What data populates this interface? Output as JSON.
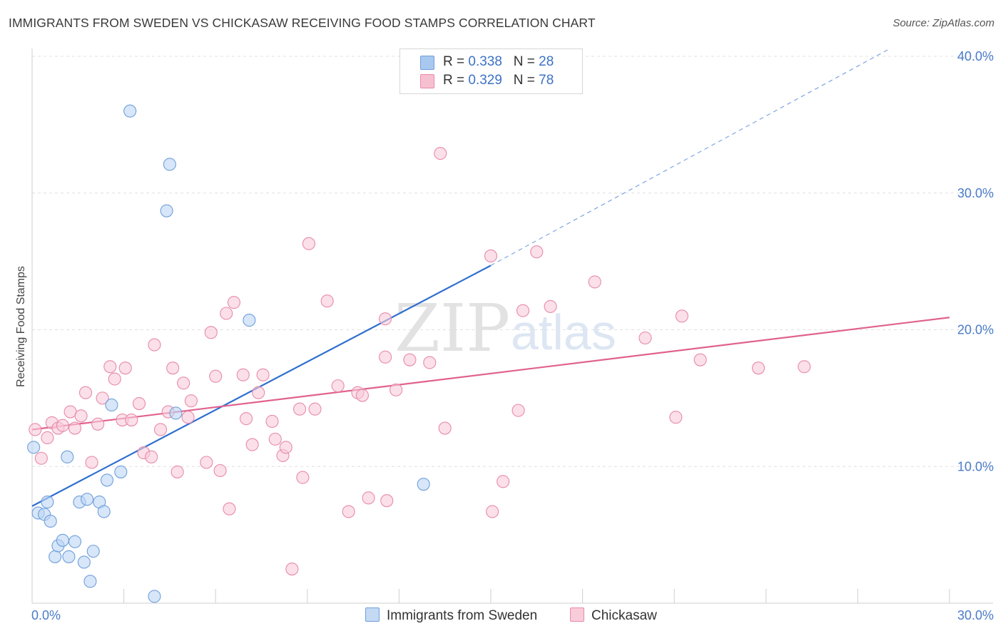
{
  "title": "IMMIGRANTS FROM SWEDEN VS CHICKASAW RECEIVING FOOD STAMPS CORRELATION CHART",
  "source": "Source: ZipAtlas.com",
  "watermark": {
    "zip": "ZIP",
    "atlas": "atlas"
  },
  "legend": {
    "rows": [
      {
        "r_label": "R = ",
        "r_value": "0.338",
        "n_label": "N = ",
        "n_value": "28",
        "color": "#a9c8ef",
        "stroke": "#6f9fdc"
      },
      {
        "r_label": "R = ",
        "r_value": "0.329",
        "n_label": "N = ",
        "n_value": "78",
        "color": "#f7c0d1",
        "stroke": "#e88aa8"
      }
    ]
  },
  "bottom_legend": [
    {
      "label": "Immigrants from Sweden",
      "color": "#c3d9f4",
      "stroke": "#6f9fdc"
    },
    {
      "label": "Chickasaw",
      "color": "#f9ccda",
      "stroke": "#e88aa8"
    }
  ],
  "chart_data": {
    "type": "scatter",
    "title": "IMMIGRANTS FROM SWEDEN VS CHICKASAW RECEIVING FOOD STAMPS CORRELATION CHART",
    "xlabel": "",
    "ylabel": "Receiving Food Stamps",
    "xlim": [
      0,
      30
    ],
    "ylim": [
      0,
      40
    ],
    "x_tick_labels": [
      "0.0%",
      "30.0%"
    ],
    "y_ticks": [
      10,
      20,
      30,
      40
    ],
    "y_tick_labels": [
      "10.0%",
      "20.0%",
      "30.0%",
      "40.0%"
    ],
    "grid": true,
    "legend_position": "top-center",
    "series": [
      {
        "name": "Immigrants from Sweden",
        "color": "#6f9fdc",
        "fill": "#bcd5f3",
        "points": [
          [
            0.05,
            11.4
          ],
          [
            0.2,
            6.6
          ],
          [
            0.4,
            6.5
          ],
          [
            0.5,
            7.4
          ],
          [
            0.6,
            6.0
          ],
          [
            0.75,
            3.4
          ],
          [
            0.85,
            4.2
          ],
          [
            1.0,
            4.6
          ],
          [
            1.2,
            3.4
          ],
          [
            1.15,
            10.7
          ],
          [
            1.4,
            4.5
          ],
          [
            1.55,
            7.4
          ],
          [
            1.7,
            3.0
          ],
          [
            1.8,
            7.6
          ],
          [
            1.9,
            1.6
          ],
          [
            2.0,
            3.8
          ],
          [
            2.2,
            7.4
          ],
          [
            2.35,
            6.7
          ],
          [
            2.45,
            9.0
          ],
          [
            2.6,
            14.5
          ],
          [
            2.9,
            9.6
          ],
          [
            3.2,
            36.0
          ],
          [
            4.0,
            0.5
          ],
          [
            4.4,
            28.7
          ],
          [
            4.5,
            32.1
          ],
          [
            4.7,
            13.9
          ],
          [
            7.1,
            20.7
          ],
          [
            12.8,
            8.7
          ]
        ],
        "trend": {
          "x0": 0.0,
          "y0": 7.1,
          "x1": 15.0,
          "y1": 24.7,
          "dashed_to_x": 28.0,
          "dashed_to_y": 40.5
        }
      },
      {
        "name": "Chickasaw",
        "color": "#e88aa8",
        "fill": "#f9ccda",
        "points": [
          [
            0.1,
            12.7
          ],
          [
            0.3,
            10.6
          ],
          [
            0.5,
            12.1
          ],
          [
            0.65,
            13.2
          ],
          [
            0.85,
            12.8
          ],
          [
            1.0,
            13.0
          ],
          [
            1.25,
            14.0
          ],
          [
            1.4,
            12.8
          ],
          [
            1.6,
            13.7
          ],
          [
            1.75,
            15.4
          ],
          [
            1.95,
            10.3
          ],
          [
            2.15,
            13.1
          ],
          [
            2.3,
            15.0
          ],
          [
            2.55,
            17.3
          ],
          [
            2.7,
            16.4
          ],
          [
            2.95,
            13.4
          ],
          [
            3.05,
            17.2
          ],
          [
            3.25,
            13.4
          ],
          [
            3.5,
            14.6
          ],
          [
            3.65,
            11.0
          ],
          [
            3.9,
            10.7
          ],
          [
            4.0,
            18.9
          ],
          [
            4.2,
            12.7
          ],
          [
            4.45,
            14.0
          ],
          [
            4.6,
            17.2
          ],
          [
            4.75,
            9.6
          ],
          [
            4.95,
            16.1
          ],
          [
            5.1,
            13.6
          ],
          [
            5.2,
            14.8
          ],
          [
            5.7,
            10.3
          ],
          [
            5.85,
            19.8
          ],
          [
            6.0,
            16.6
          ],
          [
            6.15,
            9.7
          ],
          [
            6.35,
            21.2
          ],
          [
            6.45,
            6.9
          ],
          [
            6.6,
            22.0
          ],
          [
            6.9,
            16.7
          ],
          [
            7.0,
            13.5
          ],
          [
            7.2,
            11.6
          ],
          [
            7.4,
            15.4
          ],
          [
            7.55,
            16.7
          ],
          [
            7.85,
            13.3
          ],
          [
            7.95,
            12.0
          ],
          [
            8.2,
            10.8
          ],
          [
            8.3,
            11.4
          ],
          [
            8.5,
            2.5
          ],
          [
            8.75,
            14.2
          ],
          [
            8.85,
            9.2
          ],
          [
            9.05,
            26.3
          ],
          [
            9.25,
            14.2
          ],
          [
            9.65,
            22.1
          ],
          [
            10.0,
            15.9
          ],
          [
            10.35,
            6.7
          ],
          [
            10.65,
            15.4
          ],
          [
            10.8,
            15.2
          ],
          [
            11.0,
            7.7
          ],
          [
            11.55,
            18.0
          ],
          [
            11.6,
            7.5
          ],
          [
            11.55,
            20.8
          ],
          [
            11.9,
            15.6
          ],
          [
            12.35,
            17.8
          ],
          [
            13.0,
            17.6
          ],
          [
            13.35,
            32.9
          ],
          [
            13.5,
            12.8
          ],
          [
            15.0,
            25.4
          ],
          [
            15.05,
            6.7
          ],
          [
            15.4,
            8.9
          ],
          [
            15.9,
            14.1
          ],
          [
            16.05,
            21.4
          ],
          [
            16.5,
            25.7
          ],
          [
            16.95,
            21.7
          ],
          [
            18.4,
            23.5
          ],
          [
            20.05,
            19.4
          ],
          [
            21.05,
            13.6
          ],
          [
            21.25,
            21.0
          ],
          [
            21.85,
            17.8
          ],
          [
            23.75,
            17.2
          ],
          [
            25.25,
            17.3
          ]
        ],
        "trend": {
          "x0": 0.0,
          "y0": 12.7,
          "x1": 30.0,
          "y1": 20.9
        }
      }
    ]
  }
}
